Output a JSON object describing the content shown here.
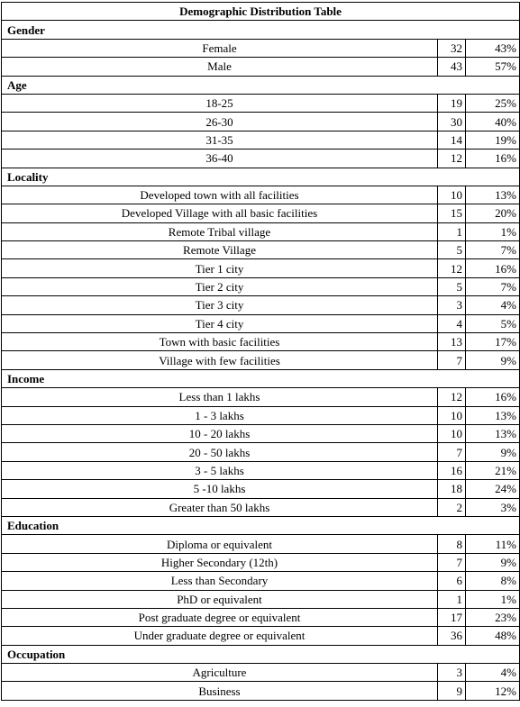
{
  "title": "Demographic Distribution Table",
  "sections": [
    {
      "name": "Gender",
      "rows": [
        {
          "label": "Female",
          "count": "32",
          "pct": "43%"
        },
        {
          "label": "Male",
          "count": "43",
          "pct": "57%"
        }
      ]
    },
    {
      "name": "Age",
      "rows": [
        {
          "label": "18-25",
          "count": "19",
          "pct": "25%"
        },
        {
          "label": "26-30",
          "count": "30",
          "pct": "40%"
        },
        {
          "label": "31-35",
          "count": "14",
          "pct": "19%"
        },
        {
          "label": "36-40",
          "count": "12",
          "pct": "16%"
        }
      ]
    },
    {
      "name": "Locality",
      "rows": [
        {
          "label": "Developed town with all facilities",
          "count": "10",
          "pct": "13%"
        },
        {
          "label": "Developed Village with all basic facilities",
          "count": "15",
          "pct": "20%"
        },
        {
          "label": "Remote Tribal village",
          "count": "1",
          "pct": "1%"
        },
        {
          "label": "Remote Village",
          "count": "5",
          "pct": "7%"
        },
        {
          "label": "Tier 1 city",
          "count": "12",
          "pct": "16%"
        },
        {
          "label": "Tier 2 city",
          "count": "5",
          "pct": "7%"
        },
        {
          "label": "Tier 3 city",
          "count": "3",
          "pct": "4%"
        },
        {
          "label": "Tier 4 city",
          "count": "4",
          "pct": "5%"
        },
        {
          "label": "Town with basic facilities",
          "count": "13",
          "pct": "17%"
        },
        {
          "label": "Village with few facilities",
          "count": "7",
          "pct": "9%"
        }
      ]
    },
    {
      "name": "Income",
      "rows": [
        {
          "label": "Less than 1 lakhs",
          "count": "12",
          "pct": "16%"
        },
        {
          "label": "1 - 3 lakhs",
          "count": "10",
          "pct": "13%"
        },
        {
          "label": "10 - 20 lakhs",
          "count": "10",
          "pct": "13%"
        },
        {
          "label": "20 - 50 lakhs",
          "count": "7",
          "pct": "9%"
        },
        {
          "label": "3 - 5 lakhs",
          "count": "16",
          "pct": "21%"
        },
        {
          "label": "5 -10 lakhs",
          "count": "18",
          "pct": "24%"
        },
        {
          "label": "Greater than 50 lakhs",
          "count": "2",
          "pct": "3%"
        }
      ]
    },
    {
      "name": "Education",
      "rows": [
        {
          "label": "Diploma or equivalent",
          "count": "8",
          "pct": "11%"
        },
        {
          "label": "Higher Secondary (12th)",
          "count": "7",
          "pct": "9%"
        },
        {
          "label": "Less than Secondary",
          "count": "6",
          "pct": "8%"
        },
        {
          "label": "PhD or equivalent",
          "count": "1",
          "pct": "1%"
        },
        {
          "label": "Post graduate degree or equivalent",
          "count": "17",
          "pct": "23%"
        },
        {
          "label": "Under graduate degree or equivalent",
          "count": "36",
          "pct": "48%"
        }
      ]
    },
    {
      "name": "Occupation",
      "rows": [
        {
          "label": "Agriculture",
          "count": "3",
          "pct": "4%"
        },
        {
          "label": "Business",
          "count": "9",
          "pct": "12%"
        }
      ]
    }
  ]
}
